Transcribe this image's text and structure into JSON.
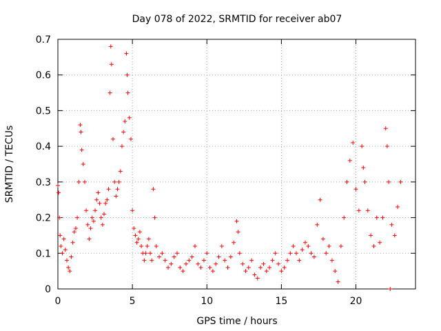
{
  "chart_data": {
    "type": "scatter",
    "title": "Day 078 of 2022, SRMTID for receiver ab07",
    "xlabel": "GPS time / hours",
    "ylabel": "SRMTID / TECUs",
    "xlim": [
      0,
      24
    ],
    "ylim": [
      0,
      0.7
    ],
    "xticks": [
      0,
      5,
      10,
      15,
      20
    ],
    "yticks": [
      0,
      0.1,
      0.2,
      0.3,
      0.4,
      0.5,
      0.6,
      0.7
    ],
    "xtick_labels": [
      "0",
      "5",
      "10",
      "15",
      "20"
    ],
    "ytick_labels": [
      "0",
      "0.1",
      "0.2",
      "0.3",
      "0.4",
      "0.5",
      "0.6",
      "0.7"
    ],
    "grid": true,
    "marker": "+",
    "color": "#ff0000",
    "series": [
      {
        "name": "ab07",
        "points": [
          [
            0.0,
            0.29
          ],
          [
            0.05,
            0.27
          ],
          [
            0.1,
            0.2
          ],
          [
            0.15,
            0.15
          ],
          [
            0.2,
            0.12
          ],
          [
            0.3,
            0.1
          ],
          [
            0.4,
            0.14
          ],
          [
            0.5,
            0.11
          ],
          [
            0.6,
            0.08
          ],
          [
            0.7,
            0.06
          ],
          [
            0.8,
            0.05
          ],
          [
            0.9,
            0.09
          ],
          [
            1.0,
            0.13
          ],
          [
            1.1,
            0.16
          ],
          [
            1.2,
            0.17
          ],
          [
            1.3,
            0.2
          ],
          [
            1.4,
            0.3
          ],
          [
            1.5,
            0.46
          ],
          [
            1.55,
            0.44
          ],
          [
            1.6,
            0.39
          ],
          [
            1.7,
            0.35
          ],
          [
            1.8,
            0.3
          ],
          [
            1.9,
            0.22
          ],
          [
            2.0,
            0.18
          ],
          [
            2.1,
            0.14
          ],
          [
            2.2,
            0.17
          ],
          [
            2.3,
            0.2
          ],
          [
            2.4,
            0.19
          ],
          [
            2.5,
            0.22
          ],
          [
            2.6,
            0.25
          ],
          [
            2.7,
            0.27
          ],
          [
            2.8,
            0.24
          ],
          [
            2.9,
            0.2
          ],
          [
            3.0,
            0.18
          ],
          [
            3.1,
            0.21
          ],
          [
            3.2,
            0.24
          ],
          [
            3.3,
            0.25
          ],
          [
            3.4,
            0.28
          ],
          [
            3.5,
            0.55
          ],
          [
            3.55,
            0.68
          ],
          [
            3.6,
            0.63
          ],
          [
            3.7,
            0.42
          ],
          [
            3.8,
            0.3
          ],
          [
            3.9,
            0.26
          ],
          [
            4.0,
            0.28
          ],
          [
            4.1,
            0.3
          ],
          [
            4.2,
            0.33
          ],
          [
            4.3,
            0.4
          ],
          [
            4.4,
            0.44
          ],
          [
            4.5,
            0.47
          ],
          [
            4.6,
            0.66
          ],
          [
            4.65,
            0.6
          ],
          [
            4.7,
            0.55
          ],
          [
            4.8,
            0.48
          ],
          [
            4.9,
            0.42
          ],
          [
            5.0,
            0.22
          ],
          [
            5.1,
            0.17
          ],
          [
            5.2,
            0.15
          ],
          [
            5.3,
            0.13
          ],
          [
            5.4,
            0.14
          ],
          [
            5.5,
            0.16
          ],
          [
            5.6,
            0.12
          ],
          [
            5.7,
            0.1
          ],
          [
            5.8,
            0.08
          ],
          [
            5.9,
            0.1
          ],
          [
            6.0,
            0.12
          ],
          [
            6.1,
            0.14
          ],
          [
            6.2,
            0.1
          ],
          [
            6.3,
            0.08
          ],
          [
            6.4,
            0.28
          ],
          [
            6.5,
            0.2
          ],
          [
            6.6,
            0.12
          ],
          [
            6.8,
            0.09
          ],
          [
            7.0,
            0.1
          ],
          [
            7.2,
            0.08
          ],
          [
            7.4,
            0.06
          ],
          [
            7.6,
            0.07
          ],
          [
            7.8,
            0.09
          ],
          [
            8.0,
            0.1
          ],
          [
            8.2,
            0.06
          ],
          [
            8.4,
            0.05
          ],
          [
            8.6,
            0.07
          ],
          [
            8.8,
            0.08
          ],
          [
            9.0,
            0.09
          ],
          [
            9.2,
            0.12
          ],
          [
            9.4,
            0.07
          ],
          [
            9.6,
            0.06
          ],
          [
            9.8,
            0.08
          ],
          [
            10.0,
            0.1
          ],
          [
            10.2,
            0.06
          ],
          [
            10.4,
            0.05
          ],
          [
            10.6,
            0.07
          ],
          [
            10.8,
            0.09
          ],
          [
            11.0,
            0.12
          ],
          [
            11.2,
            0.08
          ],
          [
            11.4,
            0.06
          ],
          [
            11.6,
            0.09
          ],
          [
            11.8,
            0.13
          ],
          [
            12.0,
            0.19
          ],
          [
            12.1,
            0.16
          ],
          [
            12.2,
            0.1
          ],
          [
            12.4,
            0.07
          ],
          [
            12.6,
            0.05
          ],
          [
            12.8,
            0.06
          ],
          [
            13.0,
            0.08
          ],
          [
            13.2,
            0.04
          ],
          [
            13.4,
            0.03
          ],
          [
            13.6,
            0.06
          ],
          [
            13.8,
            0.07
          ],
          [
            14.0,
            0.05
          ],
          [
            14.2,
            0.06
          ],
          [
            14.4,
            0.08
          ],
          [
            14.6,
            0.1
          ],
          [
            14.8,
            0.07
          ],
          [
            15.0,
            0.05
          ],
          [
            15.2,
            0.06
          ],
          [
            15.4,
            0.08
          ],
          [
            15.6,
            0.1
          ],
          [
            15.8,
            0.12
          ],
          [
            16.0,
            0.1
          ],
          [
            16.2,
            0.08
          ],
          [
            16.4,
            0.11
          ],
          [
            16.6,
            0.13
          ],
          [
            16.8,
            0.12
          ],
          [
            17.0,
            0.1
          ],
          [
            17.2,
            0.09
          ],
          [
            17.4,
            0.18
          ],
          [
            17.6,
            0.25
          ],
          [
            17.8,
            0.14
          ],
          [
            18.0,
            0.1
          ],
          [
            18.2,
            0.12
          ],
          [
            18.4,
            0.08
          ],
          [
            18.6,
            0.05
          ],
          [
            18.8,
            0.02
          ],
          [
            19.0,
            0.12
          ],
          [
            19.2,
            0.2
          ],
          [
            19.4,
            0.3
          ],
          [
            19.6,
            0.36
          ],
          [
            19.8,
            0.41
          ],
          [
            20.0,
            0.28
          ],
          [
            20.2,
            0.22
          ],
          [
            20.4,
            0.4
          ],
          [
            20.5,
            0.34
          ],
          [
            20.6,
            0.3
          ],
          [
            20.8,
            0.22
          ],
          [
            21.0,
            0.15
          ],
          [
            21.2,
            0.12
          ],
          [
            21.4,
            0.2
          ],
          [
            21.6,
            0.13
          ],
          [
            21.8,
            0.2
          ],
          [
            22.0,
            0.45
          ],
          [
            22.1,
            0.4
          ],
          [
            22.2,
            0.3
          ],
          [
            22.3,
            0.0
          ],
          [
            22.4,
            0.18
          ],
          [
            22.6,
            0.15
          ],
          [
            22.8,
            0.23
          ],
          [
            23.0,
            0.3
          ]
        ]
      }
    ]
  }
}
